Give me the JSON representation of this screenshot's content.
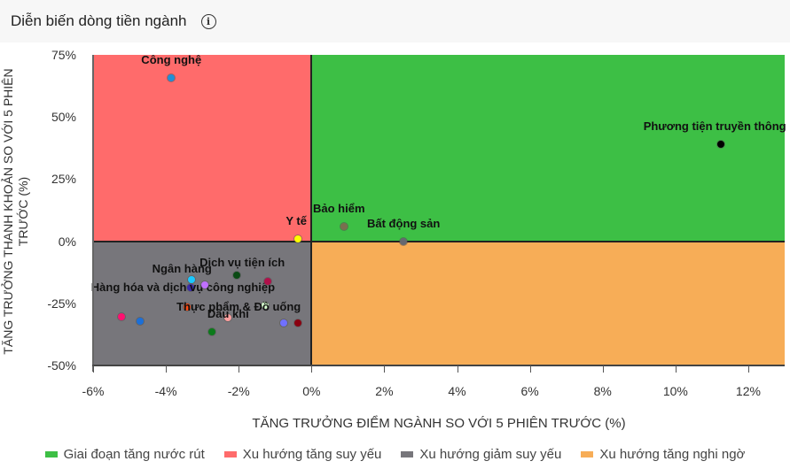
{
  "header": {
    "title": "Diễn biến dòng tiền ngành",
    "info_icon": "info-circle-icon"
  },
  "chart_data": {
    "type": "scatter",
    "title": "Diễn biến dòng tiền ngành",
    "xlabel": "TĂNG TRƯỞNG ĐIỂM NGÀNH SO VỚI 5 PHIÊN TRƯỚC (%)",
    "ylabel": "TĂNG TRƯỞNG THANH KHOẢN SO VỚI 5 PHIÊN TRƯỚC (%)",
    "xlim": [
      -6,
      13
    ],
    "ylim": [
      -50,
      75
    ],
    "x_ticks": [
      "-6%",
      "-4%",
      "-2%",
      "0%",
      "2%",
      "4%",
      "6%",
      "8%",
      "10%",
      "12%"
    ],
    "y_ticks": [
      "75%",
      "50%",
      "25%",
      "0%",
      "-25%",
      "-50%"
    ],
    "grid": false,
    "legend_position": "bottom",
    "quadrants": [
      {
        "name": "Giai đoạn tăng nước rút",
        "color": "#3dbf45",
        "region": "x>=0,y>=0"
      },
      {
        "name": "Xu hướng tăng suy yếu",
        "color": "#ff6b6b",
        "region": "x<0,y>=0"
      },
      {
        "name": "Xu hướng giảm suy yếu",
        "color": "#77767b",
        "region": "x<0,y<0"
      },
      {
        "name": "Xu hướng tăng nghi ngờ",
        "color": "#f7ad57",
        "region": "x>=0,y<0"
      }
    ],
    "points": [
      {
        "label": "Công nghệ",
        "x": -3.85,
        "y": 65.7,
        "color": "#1f8fd6",
        "show_label": true
      },
      {
        "label": "Phương tiện truyền thông",
        "x": 11.25,
        "y": 39.0,
        "color": "#000000",
        "show_label": true
      },
      {
        "label": "Y tế",
        "x": -0.37,
        "y": 0.9,
        "color": "#ffff00",
        "show_label": true
      },
      {
        "label": "Bảo hiểm",
        "x": 0.9,
        "y": 5.9,
        "color": "#7a6f4f",
        "show_label": true
      },
      {
        "label": "Bất động sản",
        "x": 2.53,
        "y": -0.1,
        "color": "#666870",
        "show_label": true
      },
      {
        "label": "Ngân hàng",
        "x": -3.29,
        "y": -15.5,
        "color": "#1ac8ff",
        "show_label": true
      },
      {
        "label": "Hàng hóa và dịch vụ công nghiệp",
        "x": -3.31,
        "y": -18.6,
        "color": "#3a2ba8",
        "show_label": true
      },
      {
        "label": "",
        "x": -2.92,
        "y": -17.6,
        "color": "#c070ff",
        "show_label": false
      },
      {
        "label": "Dịch vụ tiện ích",
        "x": -2.05,
        "y": -13.7,
        "color": "#0a4a14",
        "show_label": true
      },
      {
        "label": "",
        "x": -1.19,
        "y": -16.2,
        "color": "#b0104a",
        "show_label": false
      },
      {
        "label": "",
        "x": -3.43,
        "y": -26.5,
        "color": "#ff4a12",
        "show_label": false
      },
      {
        "label": "Dầu khí",
        "x": -2.29,
        "y": -30.7,
        "color": "#ff9f9f",
        "show_label": true
      },
      {
        "label": "Thực phẩm & Đồ uống",
        "x": -1.27,
        "y": -25.8,
        "color": "#d8ffd0",
        "show_label": true
      },
      {
        "label": "",
        "x": -5.21,
        "y": -30.4,
        "color": "#ff1070",
        "show_label": false
      },
      {
        "label": "",
        "x": -4.72,
        "y": -32.2,
        "color": "#1b6fd8",
        "show_label": false
      },
      {
        "label": "",
        "x": -2.73,
        "y": -36.4,
        "color": "#0b7a1a",
        "show_label": false
      },
      {
        "label": "",
        "x": -0.76,
        "y": -32.9,
        "color": "#7070ff",
        "show_label": false
      },
      {
        "label": "",
        "x": -0.37,
        "y": -32.9,
        "color": "#8a0010",
        "show_label": false
      }
    ]
  },
  "legend": [
    {
      "label": "Giai đoạn tăng nước rút",
      "color": "#3dbf45"
    },
    {
      "label": "Xu hướng tăng suy yếu",
      "color": "#ff6b6b"
    },
    {
      "label": "Xu hướng giảm suy yếu",
      "color": "#77767b"
    },
    {
      "label": "Xu hướng tăng nghi ngờ",
      "color": "#f7ad57"
    }
  ]
}
